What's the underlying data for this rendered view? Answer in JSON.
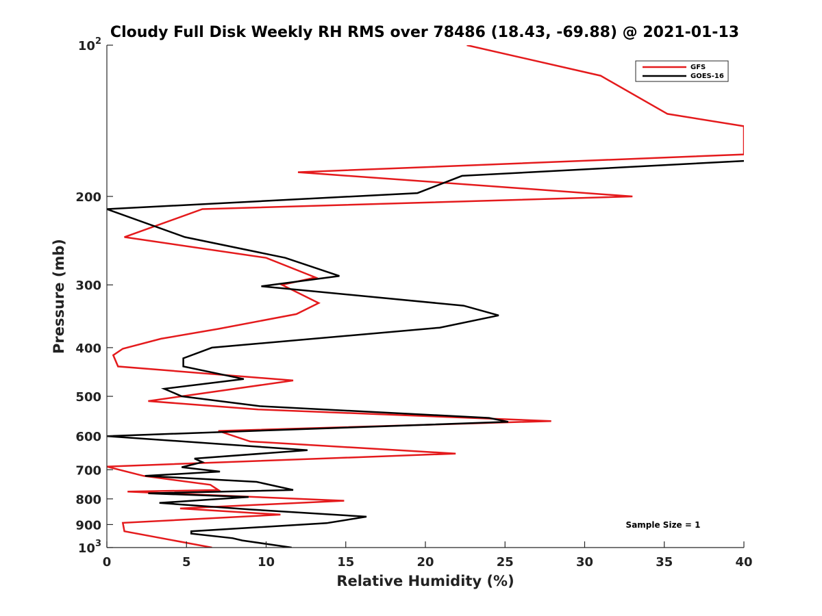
{
  "chart_data": {
    "type": "line",
    "title": "Cloudy Full Disk Weekly RH RMS over 78486 (18.43, -69.88) @ 2021-01-13",
    "xlabel": "Relative Humidity (%)",
    "ylabel": "Pressure (mb)",
    "xlim": [
      0,
      40
    ],
    "ylim": [
      100,
      1000
    ],
    "y_scale": "log",
    "y_reversed": true,
    "x_ticks": [
      "0",
      "5",
      "10",
      "15",
      "20",
      "25",
      "30",
      "35",
      "40"
    ],
    "y_ticks": [
      {
        "value": 100,
        "base": "10",
        "exp": "2"
      },
      {
        "value": 200,
        "label": "200"
      },
      {
        "value": 300,
        "label": "300"
      },
      {
        "value": 400,
        "label": "400"
      },
      {
        "value": 500,
        "label": "500"
      },
      {
        "value": 600,
        "label": "600"
      },
      {
        "value": 700,
        "label": "700"
      },
      {
        "value": 800,
        "label": "800"
      },
      {
        "value": 900,
        "label": "900"
      },
      {
        "value": 1000,
        "base": "10",
        "exp": "3"
      }
    ],
    "grid": false,
    "legend_position": "top-right",
    "annotation": "Sample Size = 1",
    "series": [
      {
        "name": "GFS",
        "color": "#e41a1c",
        "x": [
          22.6,
          31.0,
          35.2,
          40.0,
          40.0,
          12.0,
          33.0,
          6.0,
          1.1,
          10.0,
          13.1,
          11.0,
          13.3,
          11.9,
          7.0,
          3.4,
          1.0,
          0.4,
          0.7,
          11.7,
          2.6,
          9.5,
          27.9,
          7.0,
          9.0,
          21.9,
          0.0,
          2.3,
          6.5,
          7.0,
          1.3,
          14.9,
          4.6,
          10.9,
          1.0,
          1.1,
          6.6
        ],
        "y": [
          100,
          115,
          137,
          145,
          165,
          179,
          200,
          212,
          241,
          265,
          290,
          300,
          326,
          343,
          367,
          384,
          402,
          414,
          436,
          465,
          511,
          531,
          560,
          586,
          615,
          650,
          690,
          720,
          750,
          768,
          774,
          807,
          836,
          860,
          893,
          928,
          1000
        ]
      },
      {
        "name": "GOES-16",
        "color": "#000000",
        "x": [
          40.0,
          22.3,
          19.5,
          0.0,
          4.9,
          11.2,
          14.6,
          9.7,
          22.4,
          24.6,
          20.9,
          6.6,
          4.8,
          4.8,
          8.6,
          3.6,
          4.7,
          9.6,
          24.0,
          25.2,
          0.0,
          12.6,
          5.5,
          6.0,
          4.7,
          7.1,
          2.4,
          9.4,
          11.7,
          2.6,
          8.9,
          3.3,
          9.0,
          16.3,
          13.8,
          5.3,
          5.3,
          7.9,
          8.5,
          11.6
        ],
        "y": [
          170,
          182,
          197,
          212,
          241,
          265,
          288,
          302,
          330,
          345,
          365,
          400,
          420,
          436,
          462,
          483,
          500,
          523,
          552,
          562,
          600,
          640,
          665,
          676,
          692,
          706,
          720,
          740,
          768,
          780,
          793,
          815,
          840,
          868,
          894,
          928,
          938,
          958,
          968,
          1000
        ]
      }
    ]
  }
}
